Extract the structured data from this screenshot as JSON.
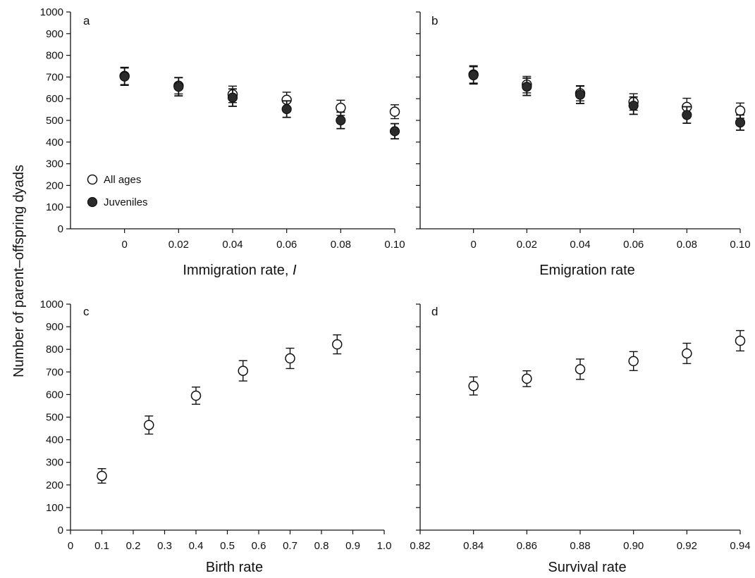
{
  "y_axis_label": "Number of parent–offspring dyads",
  "chart_data": [
    {
      "panel": "a",
      "type": "scatter",
      "xlabel_prefix": "Immigration rate, ",
      "xlabel_italic": "I",
      "x_ticks": [
        "0",
        "0.02",
        "0.04",
        "0.06",
        "0.08",
        "0.10"
      ],
      "xlim": [
        -0.02,
        0.1
      ],
      "ylim": [
        0,
        1000
      ],
      "y_ticks": [
        "0",
        "100",
        "200",
        "300",
        "400",
        "500",
        "600",
        "700",
        "800",
        "900",
        "1000"
      ],
      "legend": {
        "position": "lower-left",
        "items": [
          "All ages",
          "Juveniles"
        ]
      },
      "series": [
        {
          "name": "All ages",
          "marker": "open",
          "x": [
            0,
            0.02,
            0.04,
            0.06,
            0.08,
            0.1
          ],
          "y": [
            705,
            660,
            620,
            595,
            558,
            540
          ],
          "err": [
            40,
            38,
            38,
            35,
            35,
            32
          ]
        },
        {
          "name": "Juveniles",
          "marker": "filled",
          "x": [
            0,
            0.02,
            0.04,
            0.06,
            0.08,
            0.1
          ],
          "y": [
            702,
            655,
            605,
            552,
            500,
            450
          ],
          "err": [
            40,
            42,
            40,
            38,
            38,
            35
          ]
        }
      ]
    },
    {
      "panel": "b",
      "type": "scatter",
      "xlabel_prefix": "Emigration rate",
      "xlabel_italic": "",
      "x_ticks": [
        "0",
        "0.02",
        "0.04",
        "0.06",
        "0.08",
        "0.10"
      ],
      "xlim": [
        -0.02,
        0.1
      ],
      "ylim": [
        0,
        1000
      ],
      "series": [
        {
          "name": "All ages",
          "marker": "open",
          "x": [
            0,
            0.02,
            0.04,
            0.06,
            0.08,
            0.1
          ],
          "y": [
            712,
            665,
            625,
            585,
            562,
            545
          ],
          "err": [
            40,
            38,
            35,
            38,
            40,
            35
          ]
        },
        {
          "name": "Juveniles",
          "marker": "filled",
          "x": [
            0,
            0.02,
            0.04,
            0.06,
            0.08,
            0.1
          ],
          "y": [
            708,
            655,
            618,
            568,
            525,
            490
          ],
          "err": [
            40,
            40,
            40,
            40,
            38,
            35
          ]
        }
      ]
    },
    {
      "panel": "c",
      "type": "scatter",
      "xlabel_prefix": "Birth rate",
      "xlabel_italic": "",
      "x_ticks": [
        "0",
        "0.1",
        "0.2",
        "0.3",
        "0.4",
        "0.5",
        "0.6",
        "0.7",
        "0.8",
        "0.9",
        "1.0"
      ],
      "xlim": [
        0,
        1.0
      ],
      "ylim": [
        0,
        1000
      ],
      "y_ticks": [
        "0",
        "100",
        "200",
        "300",
        "400",
        "500",
        "600",
        "700",
        "800",
        "900",
        "1000"
      ],
      "series": [
        {
          "name": "All ages",
          "marker": "open",
          "x": [
            0.1,
            0.25,
            0.4,
            0.55,
            0.7,
            0.85
          ],
          "y": [
            240,
            465,
            595,
            705,
            760,
            822
          ],
          "err": [
            32,
            40,
            38,
            45,
            45,
            42
          ]
        }
      ]
    },
    {
      "panel": "d",
      "type": "scatter",
      "xlabel_prefix": "Survival rate",
      "xlabel_italic": "",
      "x_ticks": [
        "0.82",
        "0.84",
        "0.86",
        "0.88",
        "0.90",
        "0.92",
        "0.94"
      ],
      "xlim": [
        0.82,
        0.94
      ],
      "ylim": [
        0,
        1000
      ],
      "series": [
        {
          "name": "All ages",
          "marker": "open",
          "x": [
            0.84,
            0.86,
            0.88,
            0.9,
            0.92,
            0.94
          ],
          "y": [
            638,
            670,
            712,
            748,
            782,
            838
          ],
          "err": [
            40,
            35,
            45,
            42,
            45,
            45
          ]
        }
      ]
    }
  ]
}
